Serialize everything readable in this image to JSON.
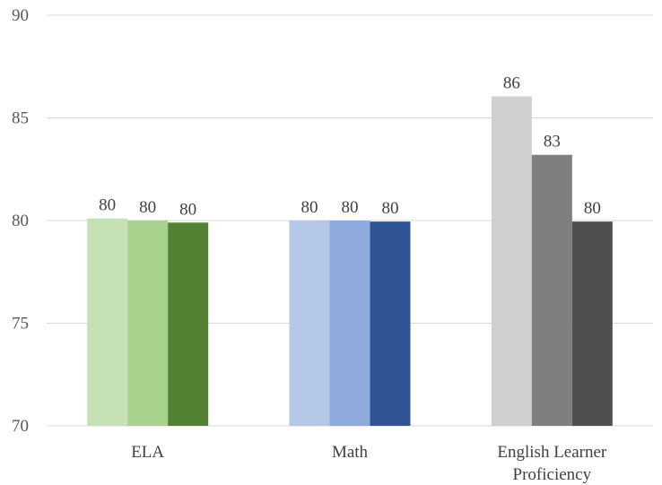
{
  "chart_data": {
    "type": "bar",
    "categories": [
      {
        "lines": [
          "ELA"
        ]
      },
      {
        "lines": [
          "Math"
        ]
      },
      {
        "lines": [
          "English Learner",
          "Proficiency"
        ]
      }
    ],
    "groups": [
      {
        "values": [
          80.1,
          80.0,
          79.9
        ],
        "labels": [
          "80",
          "80",
          "80"
        ],
        "colors": [
          "#c5e0b4",
          "#a9d18e",
          "#548235"
        ]
      },
      {
        "values": [
          80.0,
          80.0,
          79.95
        ],
        "labels": [
          "80",
          "80",
          "80"
        ],
        "colors": [
          "#b4c7e7",
          "#8faadc",
          "#2f5597"
        ]
      },
      {
        "values": [
          86.05,
          83.2,
          79.95
        ],
        "labels": [
          "86",
          "83",
          "80"
        ],
        "colors": [
          "#d0cece",
          "#7f7f7f",
          "#4f4f4f"
        ]
      }
    ],
    "ylim": [
      70,
      90
    ],
    "yticks": [
      70,
      75,
      80,
      85,
      90
    ],
    "title": "",
    "xlabel": "",
    "ylabel": "",
    "grid": true,
    "legend": "none"
  }
}
